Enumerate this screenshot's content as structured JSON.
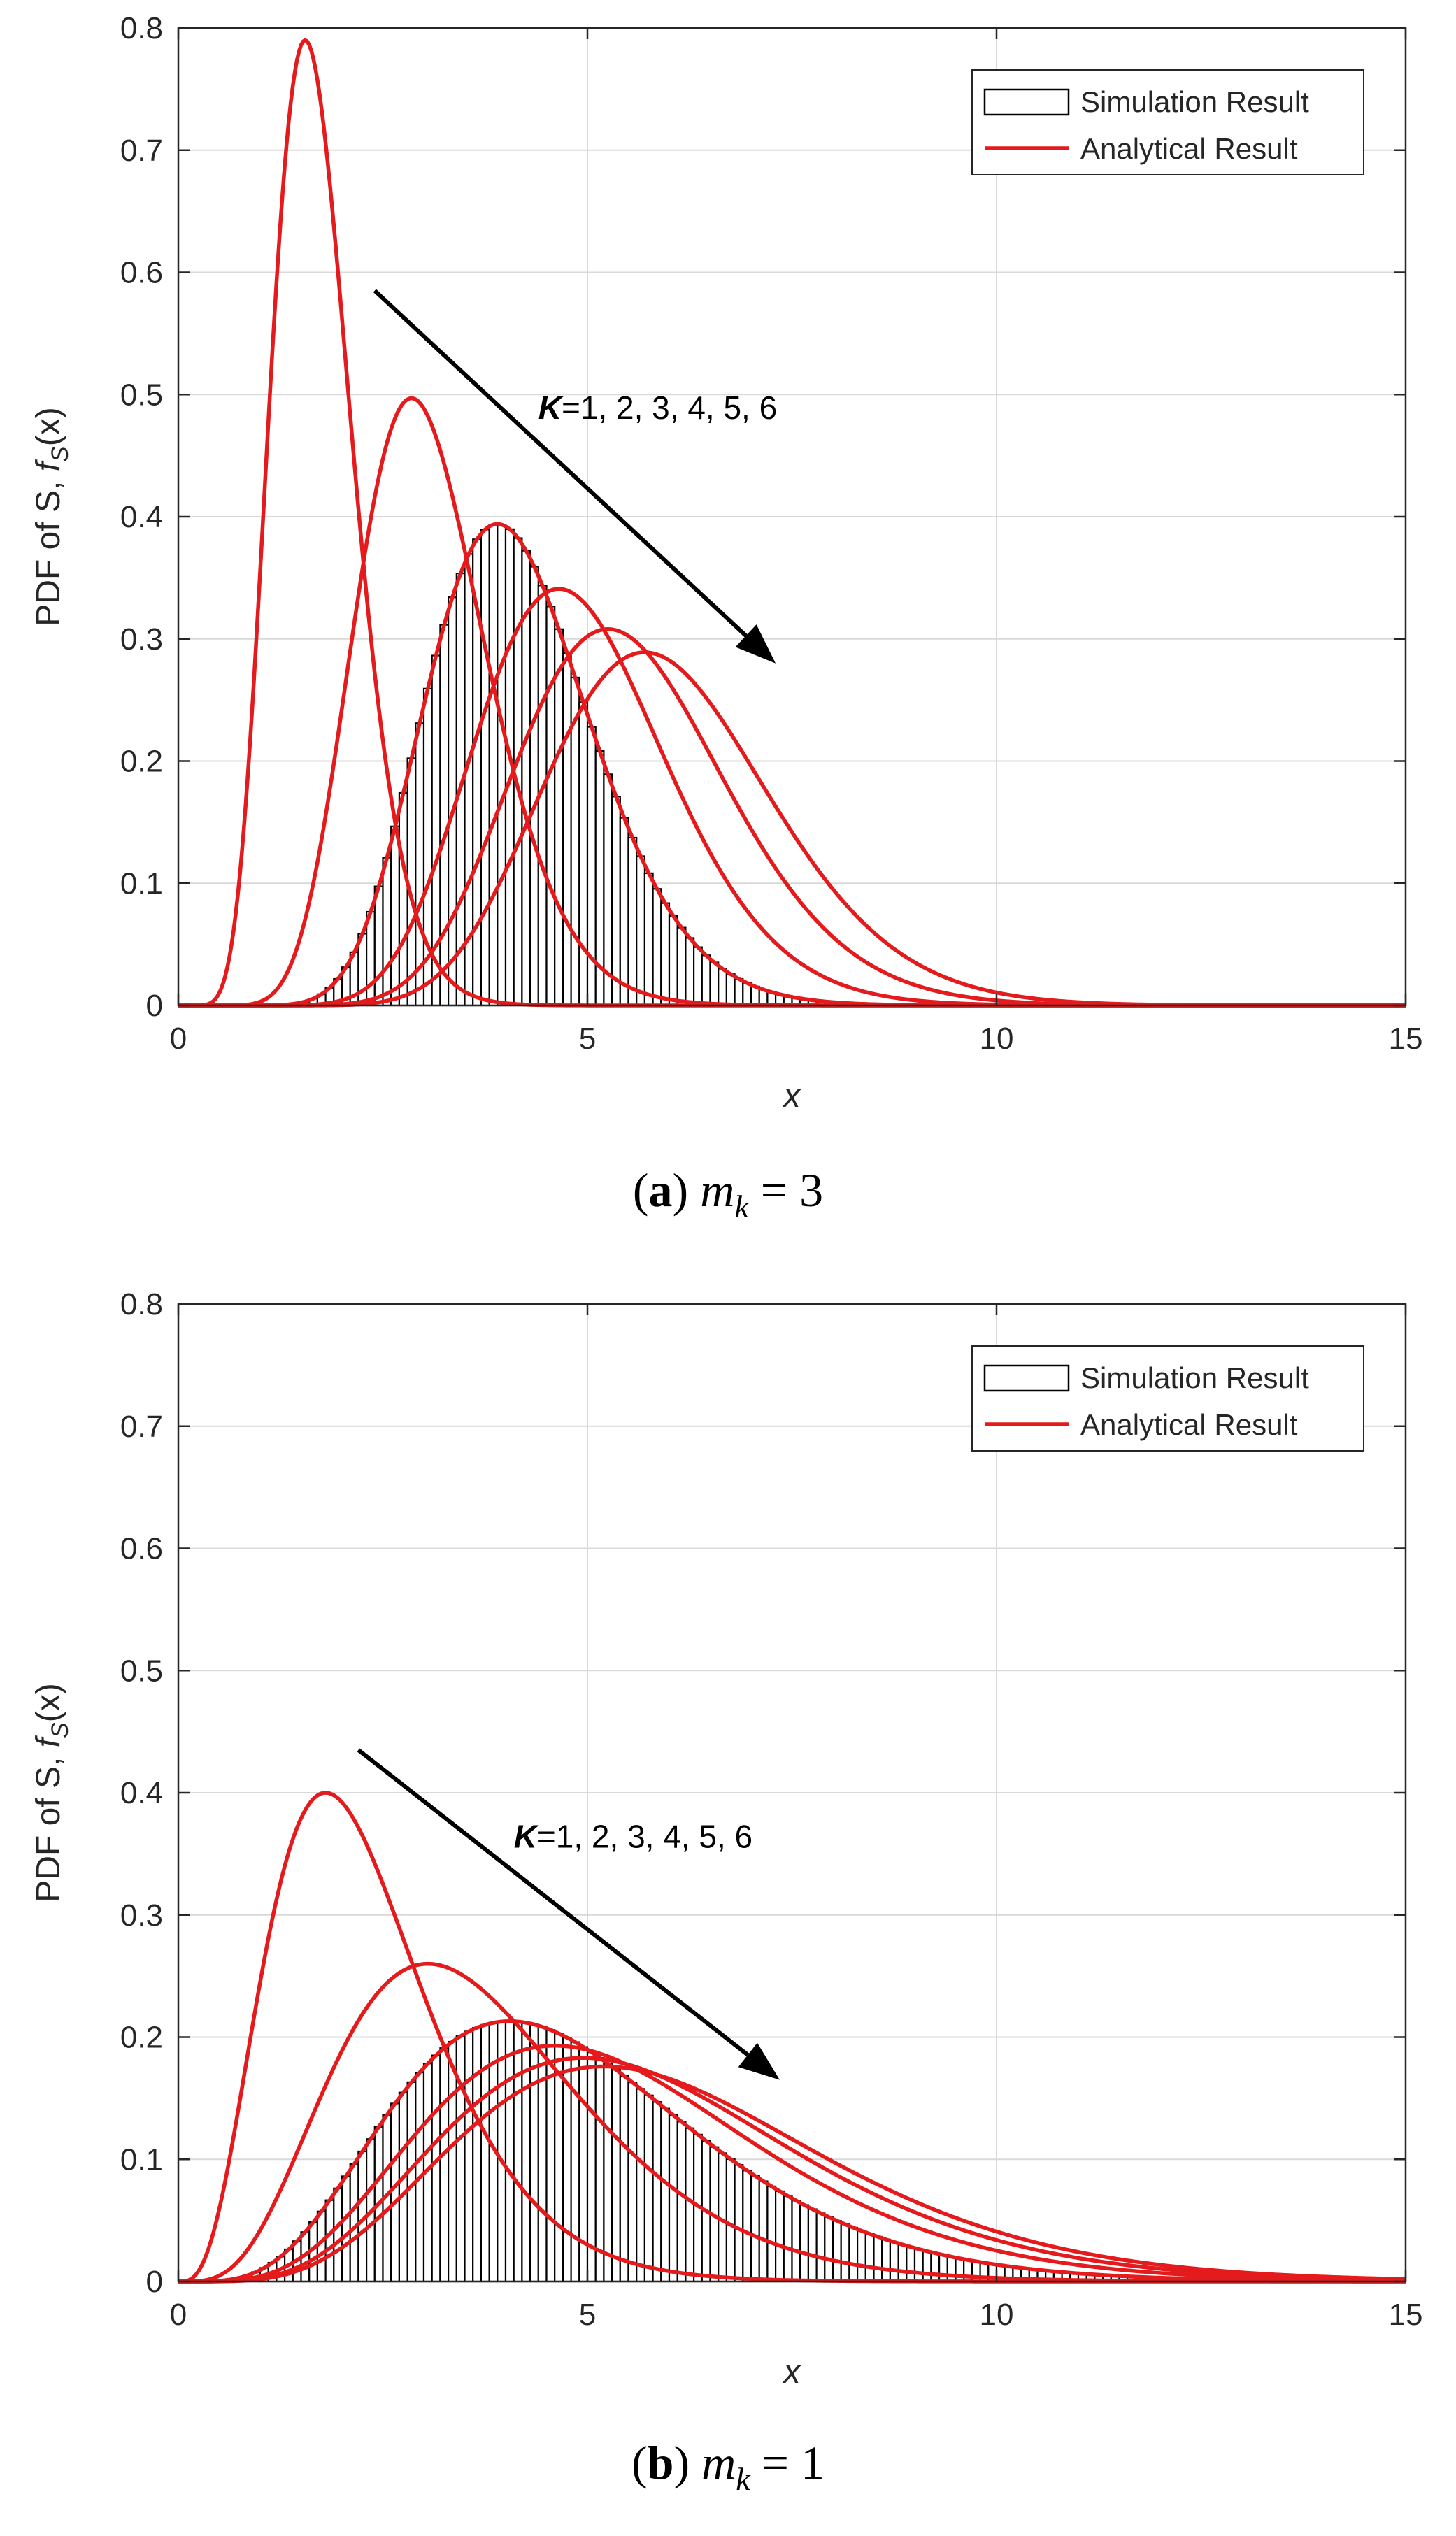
{
  "chart_data": [
    {
      "type": "line",
      "caption_label": "a",
      "caption_math": "m",
      "caption_sub": "k",
      "caption_value": "= 3",
      "m": 3,
      "xlabel": "x",
      "ylabel": {
        "prefix": "PDF of S, ",
        "f": "f",
        "sub": "S",
        "arg": "(x)"
      },
      "xlim": [
        0,
        15
      ],
      "ylim": [
        0,
        0.8
      ],
      "xticks": [
        0,
        5,
        10,
        15
      ],
      "yticks": [
        0,
        0.1,
        0.2,
        0.3,
        0.4,
        0.5,
        0.6,
        0.7,
        0.8
      ],
      "grid": true,
      "legend": {
        "position": "top-right",
        "entries": [
          "Simulation Result",
          "Analytical Result"
        ]
      },
      "annotation": {
        "bold": "K",
        "text": "=1, 2, 3, 4, 5, 6",
        "arrow_from": [
          2.4,
          0.585
        ],
        "arrow_to": [
          7.3,
          0.28
        ],
        "label_at": [
          4.4,
          0.48
        ]
      },
      "analytical_series": [
        {
          "name": "K=1",
          "peak_x": 1.55,
          "peak_y": 0.79
        },
        {
          "name": "K=2",
          "peak_x": 2.85,
          "peak_y": 0.497
        },
        {
          "name": "K=3",
          "peak_x": 3.9,
          "peak_y": 0.394
        },
        {
          "name": "K=4",
          "peak_x": 4.65,
          "peak_y": 0.341
        },
        {
          "name": "K=5",
          "peak_x": 5.25,
          "peak_y": 0.308
        },
        {
          "name": "K=6",
          "peak_x": 5.7,
          "peak_y": 0.289
        }
      ],
      "simulation_histogram": {
        "of_series": "K=3",
        "bin_width": 0.1,
        "x_range": [
          0,
          15
        ]
      },
      "colors": {
        "analytical": "#e41a1c",
        "simulation_edge": "#000000",
        "grid": "#d9d9d9"
      }
    },
    {
      "type": "line",
      "caption_label": "b",
      "caption_math": "m",
      "caption_sub": "k",
      "caption_value": "= 1",
      "m": 1,
      "xlabel": "x",
      "ylabel": {
        "prefix": "PDF of S, ",
        "f": "f",
        "sub": "S",
        "arg": "(x)"
      },
      "xlim": [
        0,
        15
      ],
      "ylim": [
        0,
        0.8
      ],
      "xticks": [
        0,
        5,
        10,
        15
      ],
      "yticks": [
        0,
        0.1,
        0.2,
        0.3,
        0.4,
        0.5,
        0.6,
        0.7,
        0.8
      ],
      "grid": true,
      "legend": {
        "position": "top-right",
        "entries": [
          "Simulation Result",
          "Analytical Result"
        ]
      },
      "annotation": {
        "bold": "K",
        "text": "=1, 2, 3, 4, 5, 6",
        "arrow_from": [
          2.2,
          0.435
        ],
        "arrow_to": [
          7.35,
          0.165
        ],
        "label_at": [
          4.1,
          0.355
        ]
      },
      "analytical_series": [
        {
          "name": "K=1",
          "peak_x": 1.8,
          "peak_y": 0.4
        },
        {
          "name": "K=2",
          "peak_x": 3.05,
          "peak_y": 0.26
        },
        {
          "name": "K=3",
          "peak_x": 4.05,
          "peak_y": 0.213
        },
        {
          "name": "K=4",
          "peak_x": 4.6,
          "peak_y": 0.193
        },
        {
          "name": "K=5",
          "peak_x": 4.95,
          "peak_y": 0.183
        },
        {
          "name": "K=6",
          "peak_x": 5.2,
          "peak_y": 0.176
        }
      ],
      "simulation_histogram": {
        "of_series": "K=3",
        "bin_width": 0.1,
        "x_range": [
          0,
          15
        ]
      },
      "colors": {
        "analytical": "#e41a1c",
        "simulation_edge": "#000000",
        "grid": "#d9d9d9"
      }
    }
  ]
}
